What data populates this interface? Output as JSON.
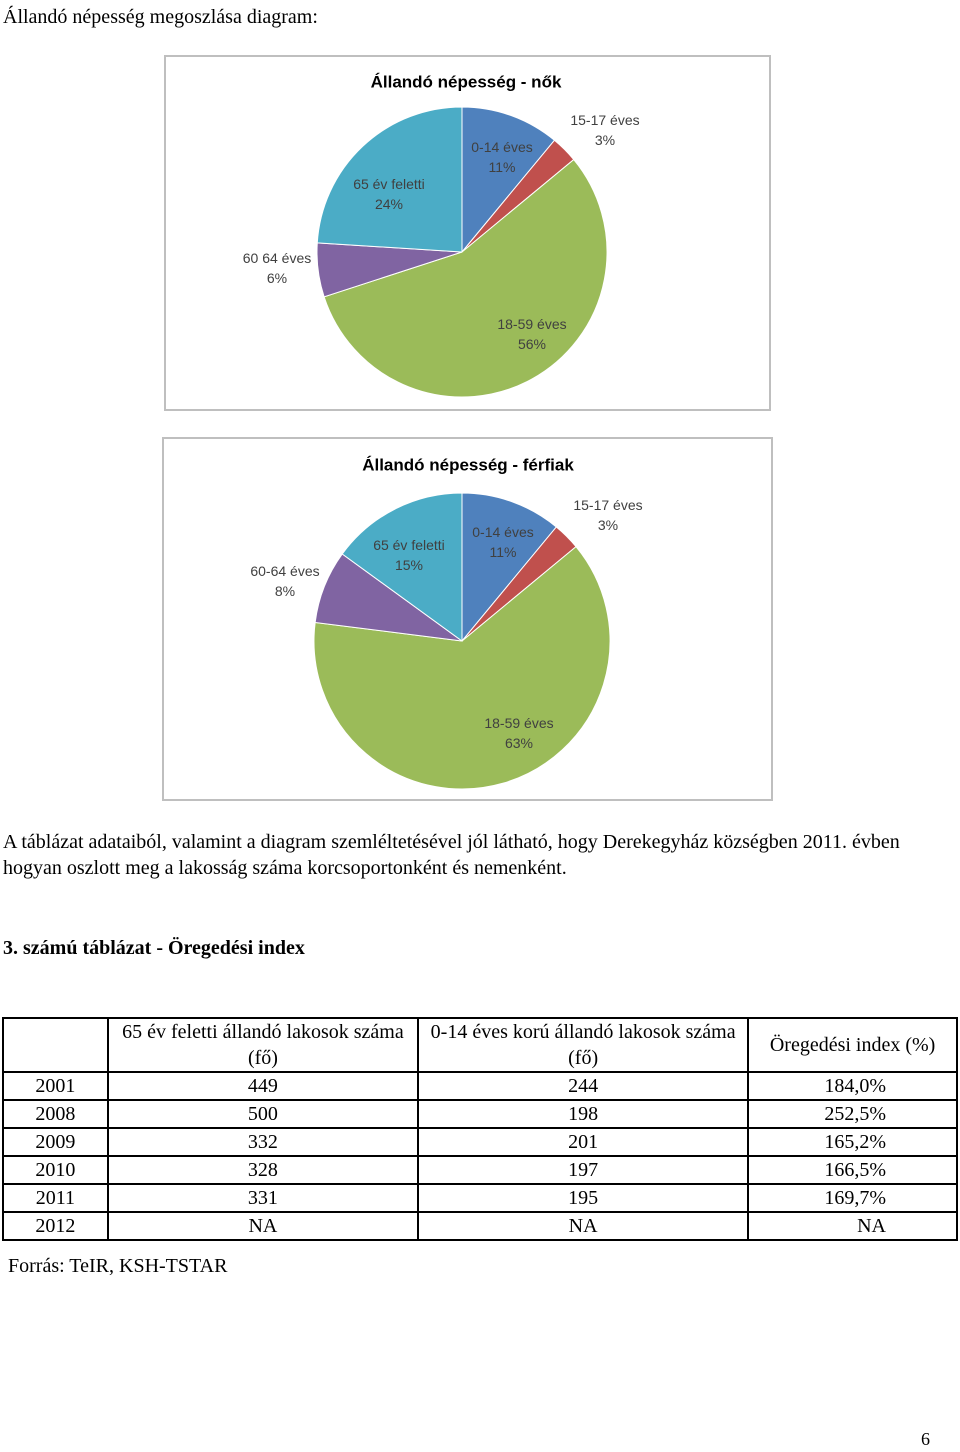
{
  "heading": "Állandó népesség megoszlása diagram:",
  "chart_data": [
    {
      "type": "pie",
      "title": "Állandó népesség - nők",
      "categories": [
        "0-14 éves",
        "15-17 éves",
        "18-59 éves",
        "60 64 éves",
        "65 év feletti"
      ],
      "values": [
        11,
        3,
        56,
        6,
        24
      ],
      "value_labels": [
        "11%",
        "3%",
        "56%",
        "6%",
        "24%"
      ],
      "colors": [
        "#4f81bd",
        "#c0504d",
        "#9bbb59",
        "#8064a2",
        "#4bacc6"
      ]
    },
    {
      "type": "pie",
      "title": "Állandó népesség - férfiak",
      "categories": [
        "0-14 éves",
        "15-17 éves",
        "18-59 éves",
        "60-64 éves",
        "65 év feletti"
      ],
      "values": [
        11,
        3,
        63,
        8,
        15
      ],
      "value_labels": [
        "11%",
        "3%",
        "63%",
        "8%",
        "15%"
      ],
      "colors": [
        "#4f81bd",
        "#c0504d",
        "#9bbb59",
        "#8064a2",
        "#4bacc6"
      ]
    }
  ],
  "paragraph": "A táblázat adataiból, valamint a diagram szemléltetésével jól látható, hogy Derekegyház községben 2011. évben hogyan oszlott meg a lakosság száma korcsoportonként és nemenként.",
  "table_title": "3. számú táblázat - Öregedési index",
  "table": {
    "header": [
      "65 év feletti állandó lakosok száma (fő)",
      "0-14 éves korú állandó lakosok száma (fő)",
      "Öregedési index (%)"
    ],
    "rows": [
      [
        "2001",
        "449",
        "244",
        "184,0%"
      ],
      [
        "2008",
        "500",
        "198",
        "252,5%"
      ],
      [
        "2009",
        "332",
        "201",
        "165,2%"
      ],
      [
        "2010",
        "328",
        "197",
        "166,5%"
      ],
      [
        "2011",
        "331",
        "195",
        "169,7%"
      ],
      [
        "2012",
        "NA",
        "NA",
        "NA"
      ]
    ]
  },
  "source": "Forrás: TeIR, KSH-TSTAR",
  "page_number": "6"
}
